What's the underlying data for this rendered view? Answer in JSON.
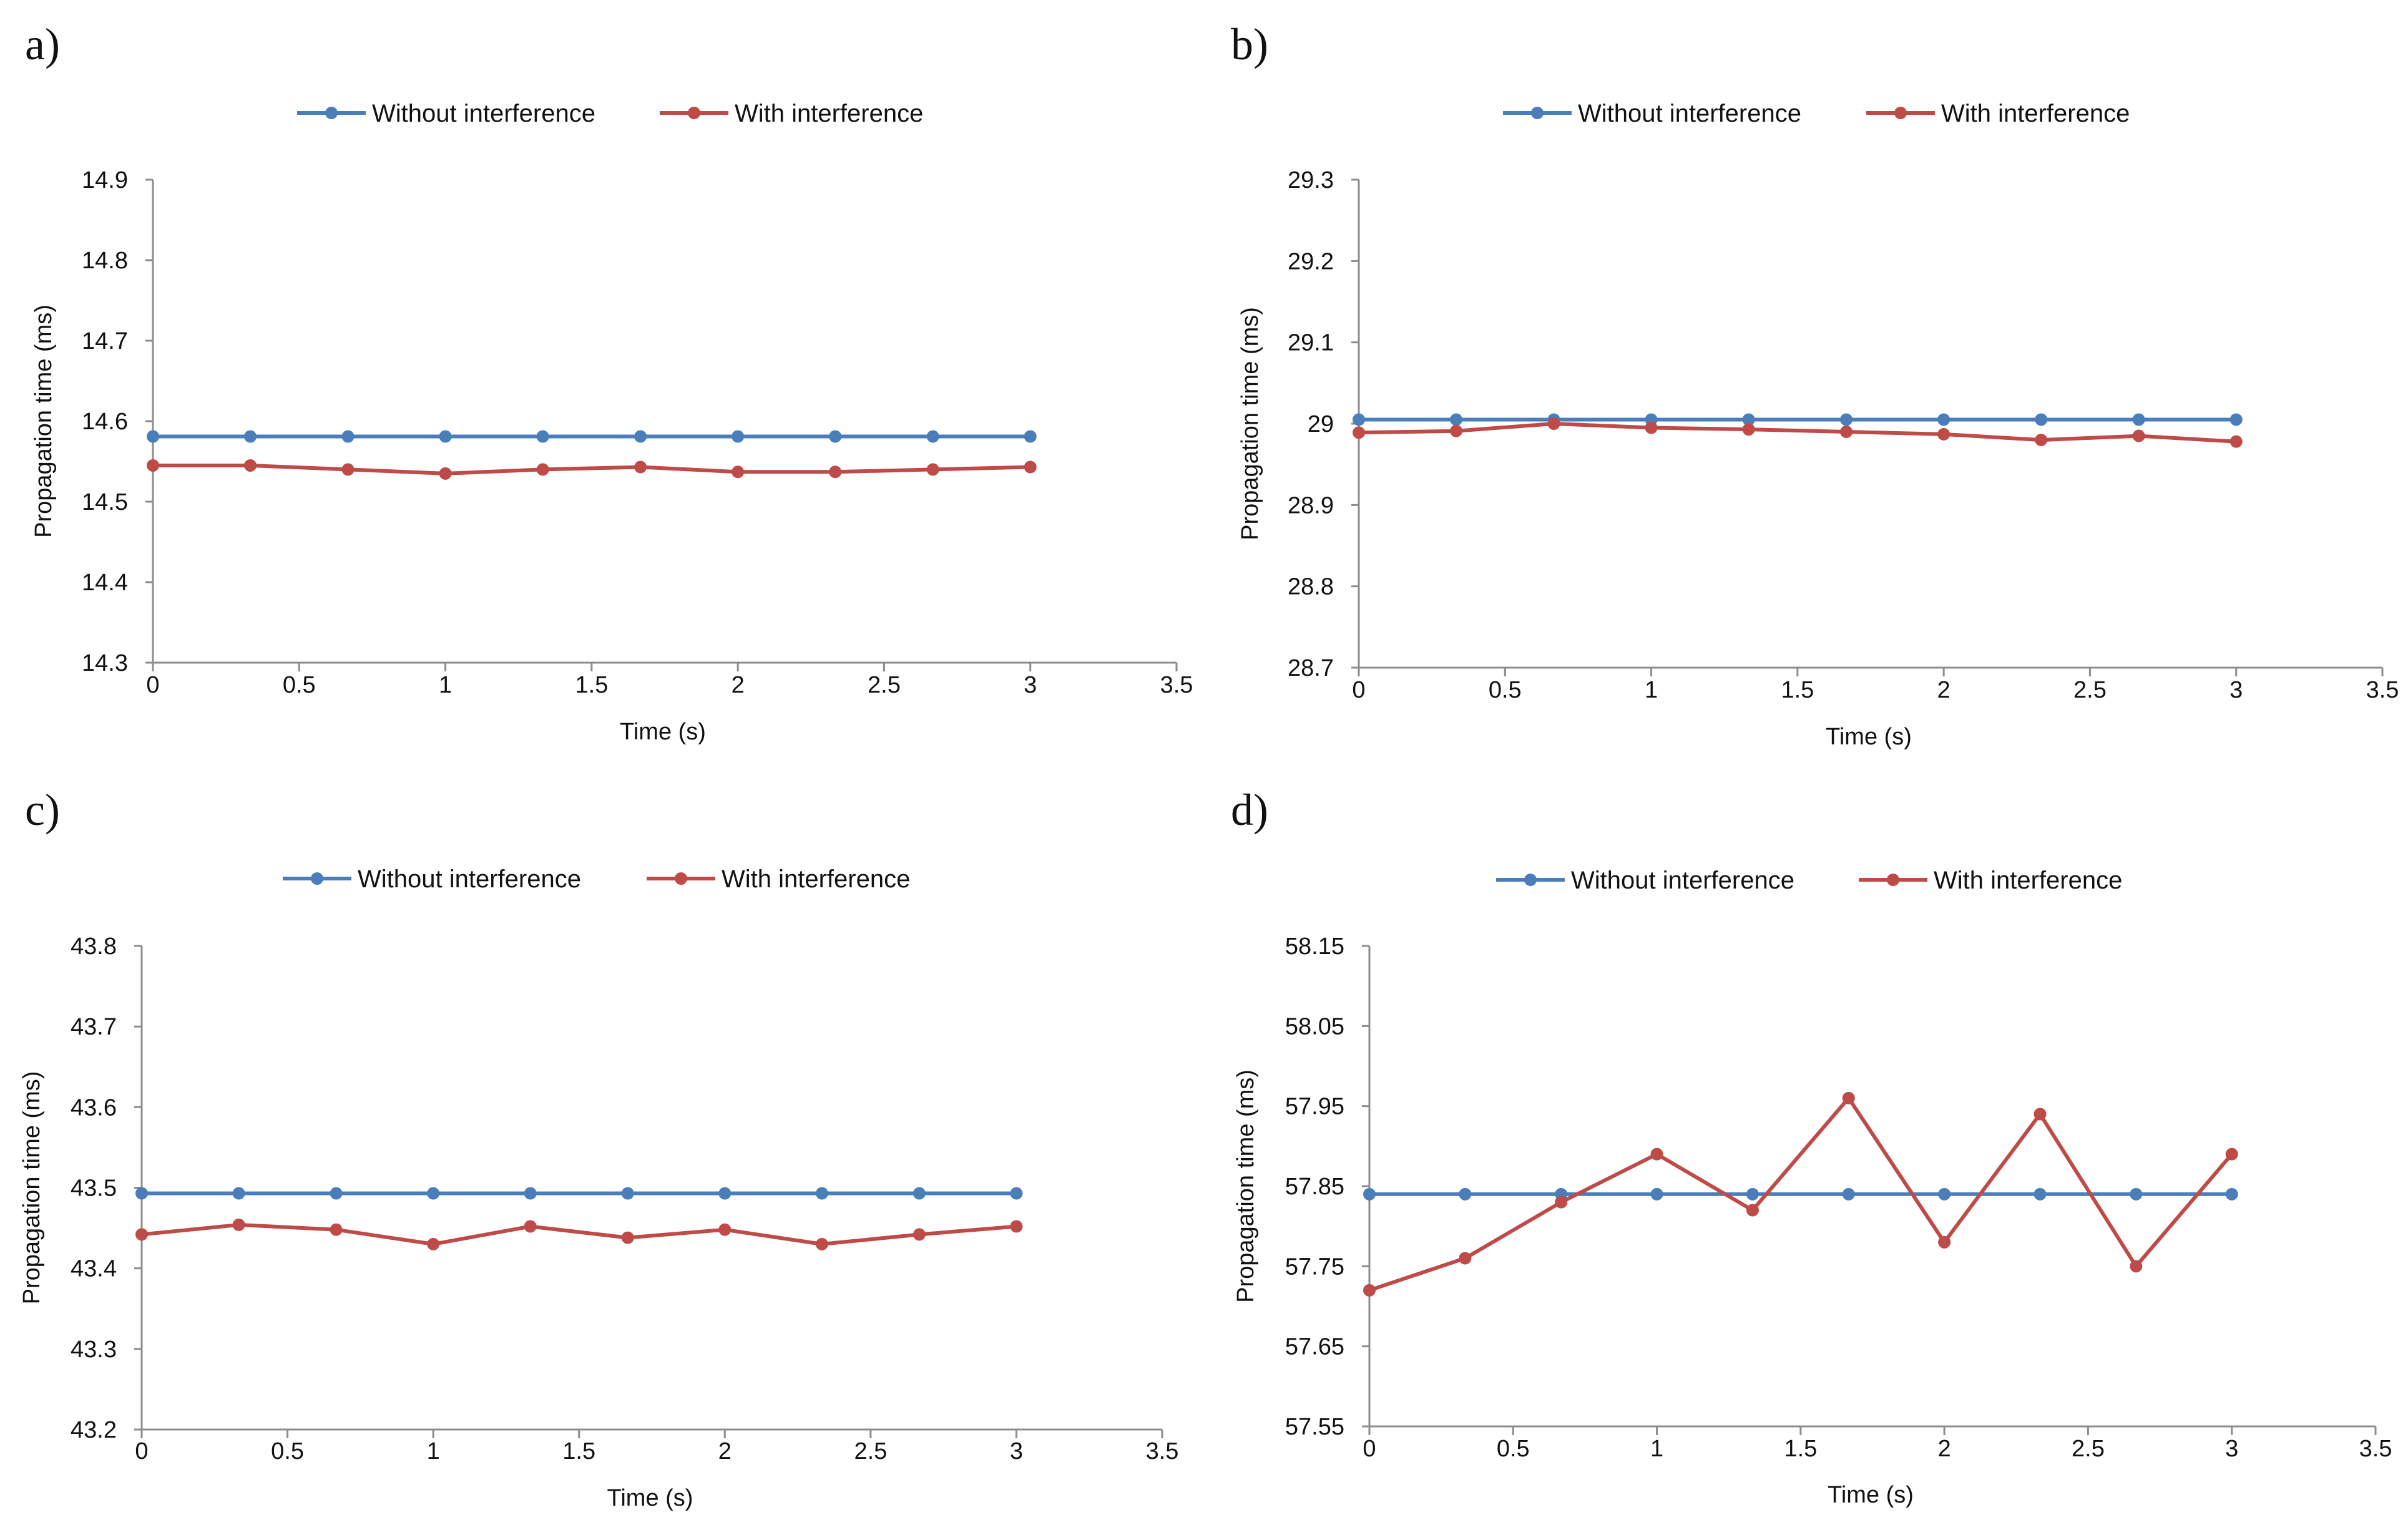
{
  "colors": {
    "without": "#4a7ebb",
    "with": "#be4b48"
  },
  "chart_data": [
    {
      "type": "line",
      "panel_label": "a)",
      "xlabel": "Time (s)",
      "ylabel": "Propagation time (ms)",
      "xlim": [
        0,
        3.5
      ],
      "ylim": [
        14.3,
        14.9
      ],
      "xticks": [
        0,
        0.5,
        1,
        1.5,
        2,
        2.5,
        3,
        3.5
      ],
      "xtick_labels": [
        "0",
        "0.5",
        "1",
        "1.5",
        "2",
        "2.5",
        "3",
        "3.5"
      ],
      "yticks": [
        14.3,
        14.4,
        14.5,
        14.6,
        14.7,
        14.8,
        14.9
      ],
      "ytick_labels": [
        "14.3",
        "14.4",
        "14.5",
        "14.6",
        "14.7",
        "14.8",
        "14.9"
      ],
      "legend_position": "top-center",
      "x": [
        0,
        0.333,
        0.667,
        1,
        1.333,
        1.667,
        2,
        2.333,
        2.667,
        3
      ],
      "series": [
        {
          "name": "Without interference",
          "color": "#4a7ebb",
          "values": [
            14.581,
            14.581,
            14.581,
            14.581,
            14.581,
            14.581,
            14.581,
            14.581,
            14.581,
            14.581
          ]
        },
        {
          "name": "With interference",
          "color": "#be4b48",
          "values": [
            14.545,
            14.545,
            14.54,
            14.535,
            14.54,
            14.543,
            14.537,
            14.537,
            14.54,
            14.543
          ]
        }
      ]
    },
    {
      "type": "line",
      "panel_label": "b)",
      "xlabel": "Time (s)",
      "ylabel": "Propagation time (ms)",
      "xlim": [
        0,
        3.5
      ],
      "ylim": [
        28.7,
        29.3
      ],
      "xticks": [
        0,
        0.5,
        1,
        1.5,
        2,
        2.5,
        3,
        3.5
      ],
      "xtick_labels": [
        "0",
        "0.5",
        "1",
        "1.5",
        "2",
        "2.5",
        "3",
        "3.5"
      ],
      "yticks": [
        28.7,
        28.8,
        28.9,
        29.0,
        29.1,
        29.2,
        29.3
      ],
      "ytick_labels": [
        "28.7",
        "28.8",
        "28.9",
        "29",
        "29.1",
        "29.2",
        "29.3"
      ],
      "legend_position": "top-center",
      "x": [
        0,
        0.333,
        0.667,
        1,
        1.333,
        1.667,
        2,
        2.333,
        2.667,
        3
      ],
      "series": [
        {
          "name": "Without interference",
          "color": "#4a7ebb",
          "values": [
            29.005,
            29.005,
            29.005,
            29.005,
            29.005,
            29.005,
            29.005,
            29.005,
            29.005,
            29.005
          ]
        },
        {
          "name": "With interference",
          "color": "#be4b48",
          "values": [
            28.989,
            28.991,
            29.0,
            28.995,
            28.993,
            28.99,
            28.987,
            28.98,
            28.985,
            28.978
          ]
        }
      ]
    },
    {
      "type": "line",
      "panel_label": "c)",
      "xlabel": "Time (s)",
      "ylabel": "Propagation time (ms)",
      "xlim": [
        0,
        3.5
      ],
      "ylim": [
        43.2,
        43.8
      ],
      "xticks": [
        0,
        0.5,
        1,
        1.5,
        2,
        2.5,
        3,
        3.5
      ],
      "xtick_labels": [
        "0",
        "0.5",
        "1",
        "1.5",
        "2",
        "2.5",
        "3",
        "3.5"
      ],
      "yticks": [
        43.2,
        43.3,
        43.4,
        43.5,
        43.6,
        43.7,
        43.8
      ],
      "ytick_labels": [
        "43.2",
        "43.3",
        "43.4",
        "43.5",
        "43.6",
        "43.7",
        "43.8"
      ],
      "legend_position": "top-center",
      "x": [
        0,
        0.333,
        0.667,
        1,
        1.333,
        1.667,
        2,
        2.333,
        2.667,
        3
      ],
      "series": [
        {
          "name": "Without interference",
          "color": "#4a7ebb",
          "values": [
            43.493,
            43.493,
            43.493,
            43.493,
            43.493,
            43.493,
            43.493,
            43.493,
            43.493,
            43.493
          ]
        },
        {
          "name": "With interference",
          "color": "#be4b48",
          "values": [
            43.442,
            43.454,
            43.448,
            43.43,
            43.452,
            43.438,
            43.448,
            43.43,
            43.442,
            43.452
          ]
        }
      ]
    },
    {
      "type": "line",
      "panel_label": "d)",
      "xlabel": "Time (s)",
      "ylabel": "Propagation time (ms)",
      "xlim": [
        0,
        3.5
      ],
      "ylim": [
        57.55,
        58.15
      ],
      "xticks": [
        0,
        0.5,
        1,
        1.5,
        2,
        2.5,
        3,
        3.5
      ],
      "xtick_labels": [
        "0",
        "0.5",
        "1",
        "1.5",
        "2",
        "2.5",
        "3",
        "3.5"
      ],
      "yticks": [
        57.55,
        57.65,
        57.75,
        57.85,
        57.95,
        58.05,
        58.15
      ],
      "ytick_labels": [
        "57.55",
        "57.65",
        "57.75",
        "57.85",
        "57.95",
        "58.05",
        "58.15"
      ],
      "legend_position": "top-center",
      "x": [
        0,
        0.333,
        0.667,
        1,
        1.333,
        1.667,
        2,
        2.333,
        2.667,
        3
      ],
      "series": [
        {
          "name": "Without interference",
          "color": "#4a7ebb",
          "values": [
            57.84,
            57.84,
            57.84,
            57.84,
            57.84,
            57.84,
            57.84,
            57.84,
            57.84,
            57.84
          ]
        },
        {
          "name": "With interference",
          "color": "#be4b48",
          "values": [
            57.72,
            57.76,
            57.83,
            57.89,
            57.82,
            57.96,
            57.78,
            57.94,
            57.75,
            57.89
          ]
        }
      ]
    }
  ]
}
